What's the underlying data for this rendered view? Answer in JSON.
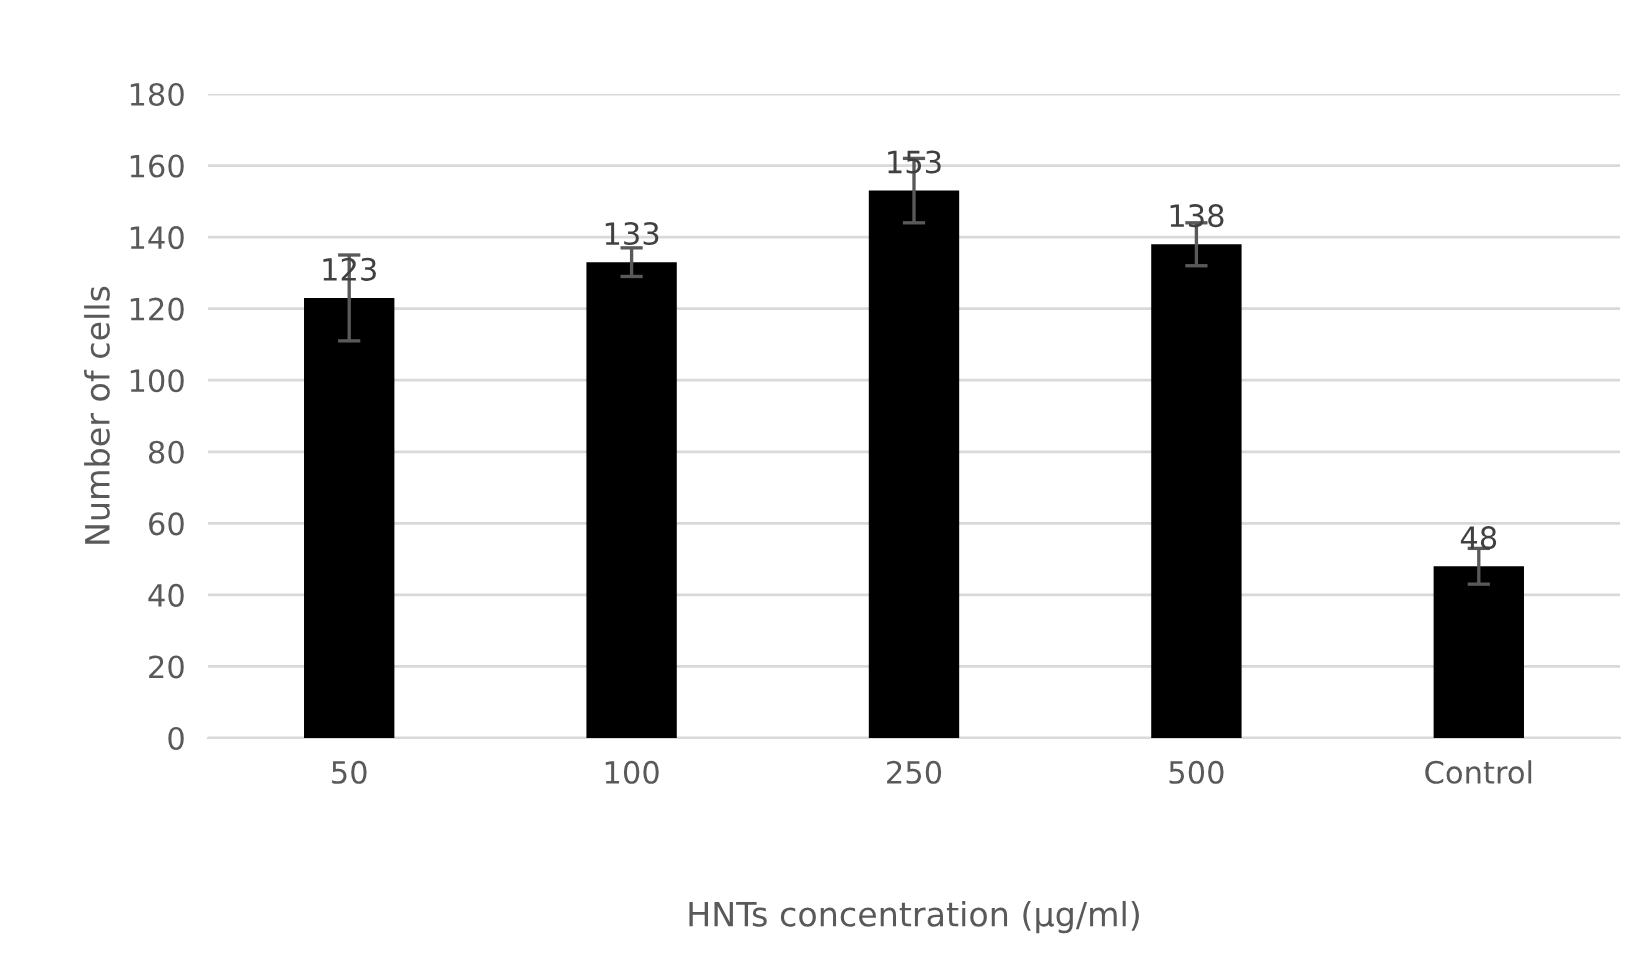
{
  "chart_data": {
    "type": "bar",
    "xlabel": "HNTs concentration (µg/ml)",
    "ylabel": "Number of cells",
    "categories": [
      "50",
      "100",
      "250",
      "500",
      "Control"
    ],
    "values": [
      123,
      133,
      153,
      138,
      48
    ],
    "errors": [
      12,
      4,
      9,
      6,
      5
    ],
    "color": "#000000",
    "data_labels": true,
    "ylim": [
      0,
      180
    ],
    "yticks": [
      0,
      20,
      40,
      60,
      80,
      100,
      120,
      140,
      160,
      180
    ],
    "grid": "y"
  }
}
